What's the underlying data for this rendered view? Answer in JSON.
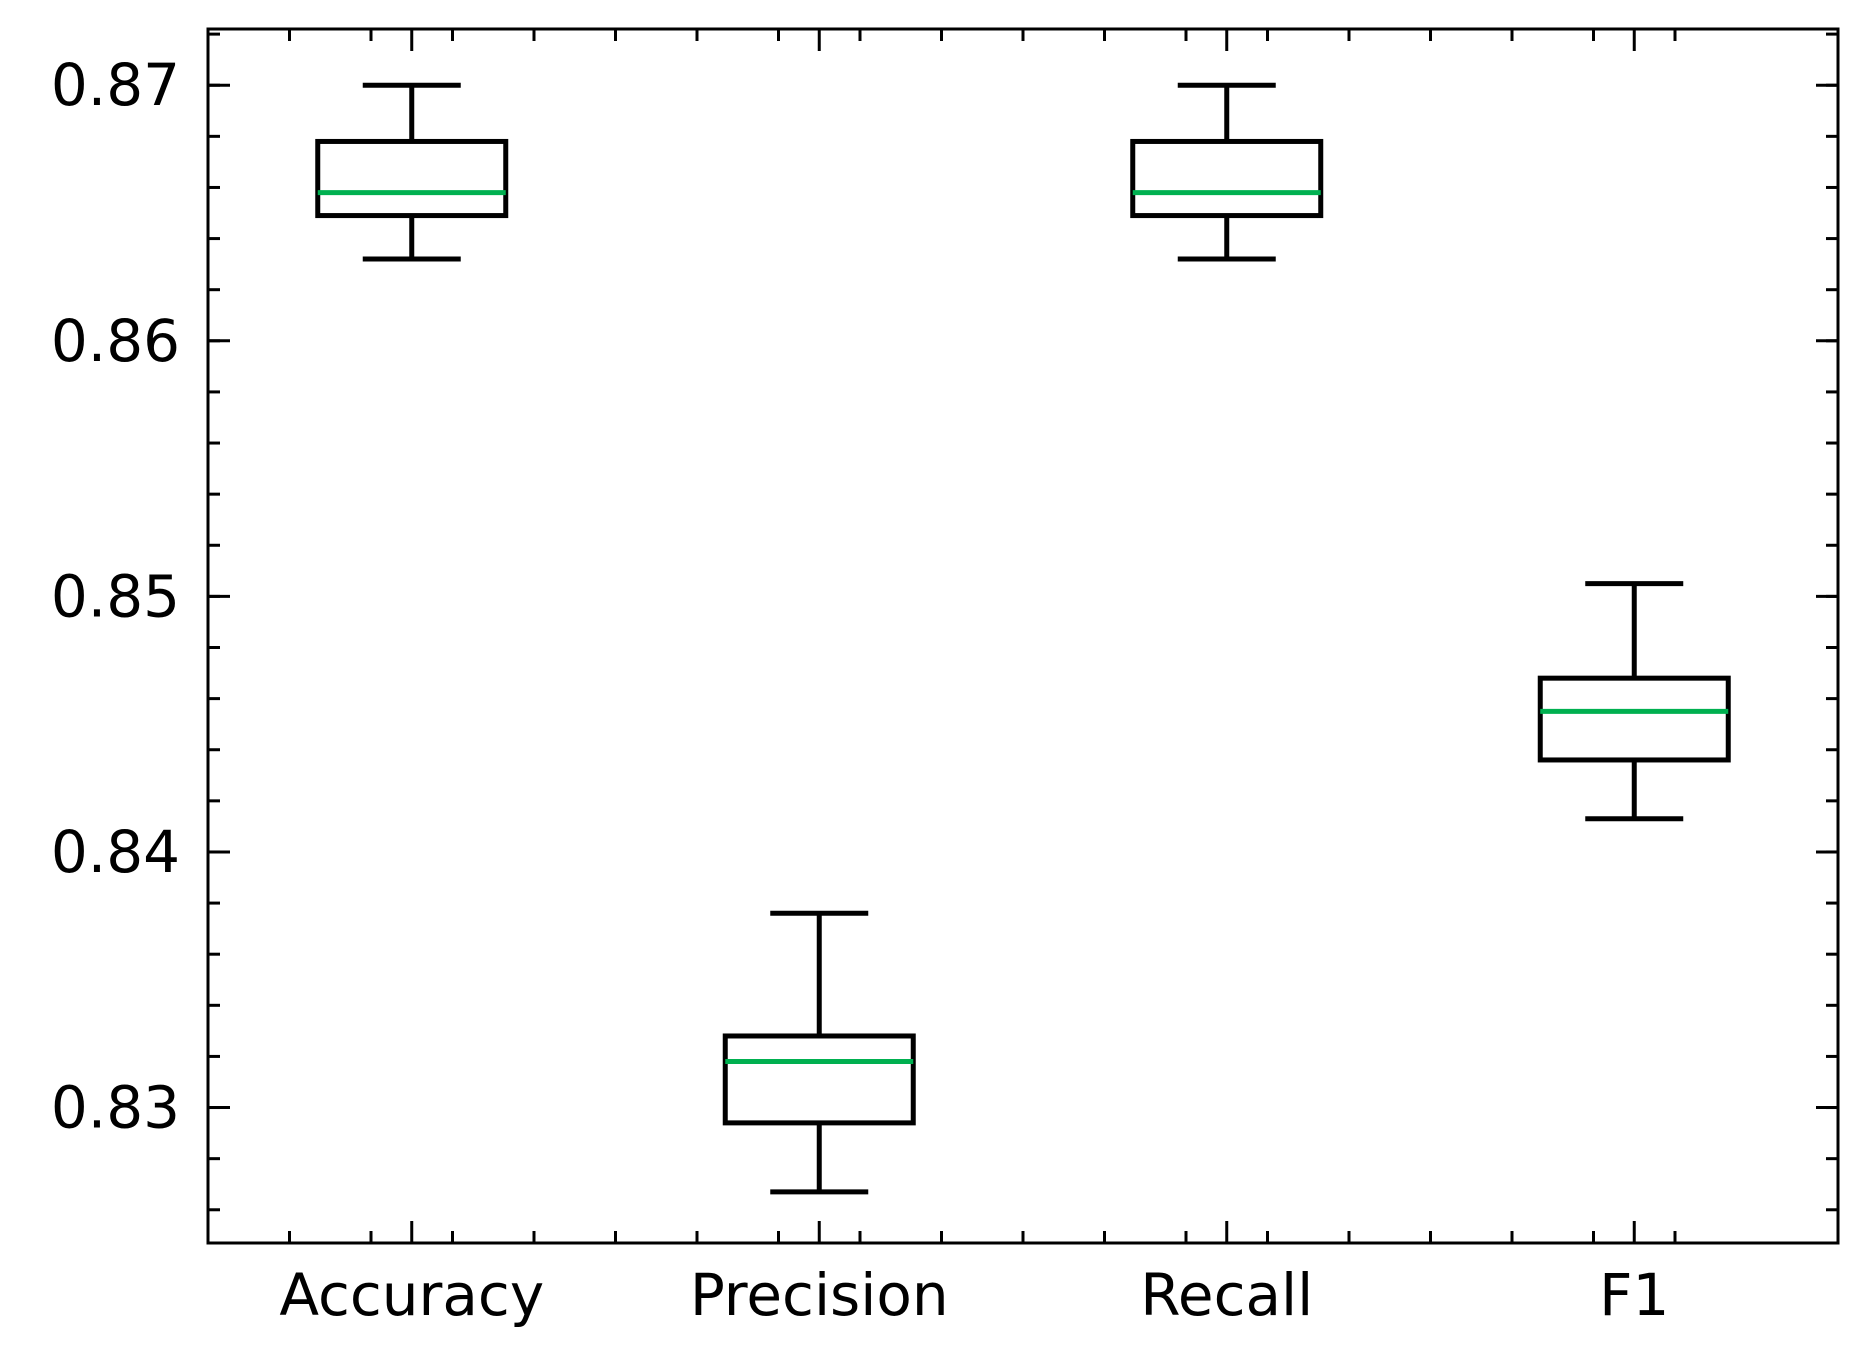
{
  "chart_data": {
    "type": "box",
    "title": "",
    "xlabel": "",
    "ylabel": "",
    "ylim": [
      0.8247,
      0.8722
    ],
    "categories": [
      "Accuracy",
      "Precision",
      "Recall",
      "F1"
    ],
    "boxes": [
      {
        "category": "Accuracy",
        "whisker_low": 0.8632,
        "q1": 0.8649,
        "median": 0.8658,
        "q3": 0.8678,
        "whisker_high": 0.87
      },
      {
        "category": "Precision",
        "whisker_low": 0.8267,
        "q1": 0.8294,
        "median": 0.8318,
        "q3": 0.8328,
        "whisker_high": 0.8376
      },
      {
        "category": "Recall",
        "whisker_low": 0.8632,
        "q1": 0.8649,
        "median": 0.8658,
        "q3": 0.8678,
        "whisker_high": 0.87
      },
      {
        "category": "F1",
        "whisker_low": 0.8413,
        "q1": 0.8436,
        "median": 0.8455,
        "q3": 0.8468,
        "whisker_high": 0.8505
      }
    ],
    "y_ticks": [
      {
        "value": 0.83,
        "label": "0.83"
      },
      {
        "value": 0.84,
        "label": "0.84"
      },
      {
        "value": 0.85,
        "label": "0.85"
      },
      {
        "value": 0.86,
        "label": "0.86"
      },
      {
        "value": 0.87,
        "label": "0.87"
      }
    ],
    "y_minor_step": 0.002,
    "grid": false,
    "colors": {
      "box": "#000000",
      "median": "#00b050",
      "axes": "#000000"
    }
  }
}
